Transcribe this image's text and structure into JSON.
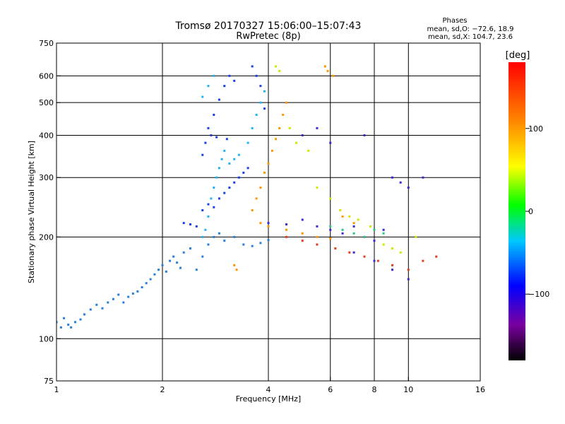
{
  "chart_data": {
    "type": "scatter",
    "title": "Tromsø 20170327 15:06:00–15:07:43",
    "subtitle": "RwPretec (8p)",
    "xlabel": "Frequency [MHz]",
    "ylabel": "Stationary phase Virtual Height [km]",
    "x_scale": "log2",
    "y_scale": "log",
    "xlim": [
      1,
      16
    ],
    "ylim": [
      75,
      750
    ],
    "x_ticks": [
      1,
      2,
      4,
      6,
      8,
      10,
      16
    ],
    "y_ticks": [
      75,
      100,
      200,
      300,
      400,
      500,
      600,
      750
    ],
    "grid": true,
    "phase_box": {
      "title": "Phases",
      "line_o": "mean, sd,O: −72.6, 18.9",
      "line_x": "mean, sd,X: 104.7, 23.6"
    },
    "colorbar": {
      "label": "[deg]",
      "ticks": [
        "100",
        "0",
        "−100"
      ],
      "tick_values": [
        100,
        0,
        -100
      ],
      "range": [
        -180,
        180
      ],
      "colors": [
        "#000000",
        "#7a00a0",
        "#0000ff",
        "#00c8ff",
        "#00ff00",
        "#ffff00",
        "#ff8800",
        "#ff0000"
      ]
    },
    "series": [
      {
        "color": "#2a7ddc",
        "points": [
          [
            1.0,
            112
          ],
          [
            1.03,
            108
          ],
          [
            1.05,
            115
          ],
          [
            1.08,
            110
          ],
          [
            1.1,
            108
          ],
          [
            1.13,
            112
          ],
          [
            1.17,
            114
          ],
          [
            1.2,
            118
          ],
          [
            1.25,
            122
          ],
          [
            1.3,
            126
          ],
          [
            1.35,
            123
          ],
          [
            1.4,
            128
          ],
          [
            1.45,
            131
          ],
          [
            1.5,
            135
          ],
          [
            1.55,
            128
          ],
          [
            1.6,
            133
          ],
          [
            1.65,
            136
          ],
          [
            1.7,
            138
          ],
          [
            1.75,
            142
          ],
          [
            1.8,
            146
          ],
          [
            1.85,
            150
          ],
          [
            1.9,
            155
          ],
          [
            1.95,
            160
          ],
          [
            2.0,
            165
          ],
          [
            2.05,
            158
          ],
          [
            2.1,
            170
          ],
          [
            2.15,
            175
          ],
          [
            2.2,
            168
          ],
          [
            2.25,
            162
          ],
          [
            2.3,
            180
          ],
          [
            2.4,
            185
          ],
          [
            2.5,
            160
          ],
          [
            2.6,
            175
          ],
          [
            2.7,
            190
          ],
          [
            2.8,
            200
          ],
          [
            2.9,
            205
          ],
          [
            3.0,
            195
          ],
          [
            3.2,
            200
          ],
          [
            3.4,
            190
          ],
          [
            3.6,
            188
          ],
          [
            3.8,
            192
          ],
          [
            4.0,
            196
          ]
        ]
      },
      {
        "color": "#1a3ee8",
        "points": [
          [
            2.3,
            220
          ],
          [
            2.4,
            218
          ],
          [
            2.5,
            215
          ],
          [
            2.6,
            240
          ],
          [
            2.7,
            250
          ],
          [
            2.8,
            245
          ],
          [
            2.9,
            260
          ],
          [
            3.0,
            270
          ],
          [
            3.1,
            280
          ],
          [
            3.2,
            290
          ],
          [
            3.3,
            300
          ],
          [
            3.4,
            310
          ],
          [
            3.5,
            320
          ],
          [
            2.7,
            420
          ],
          [
            2.8,
            460
          ],
          [
            2.9,
            510
          ],
          [
            3.0,
            560
          ],
          [
            3.1,
            600
          ],
          [
            3.2,
            580
          ],
          [
            2.6,
            350
          ],
          [
            2.65,
            380
          ],
          [
            2.75,
            400
          ],
          [
            2.85,
            395
          ],
          [
            3.05,
            390
          ],
          [
            3.6,
            640
          ],
          [
            3.7,
            600
          ],
          [
            3.8,
            560
          ],
          [
            3.9,
            480
          ]
        ]
      },
      {
        "color": "#1fb4f0",
        "points": [
          [
            2.6,
            200
          ],
          [
            2.65,
            210
          ],
          [
            2.7,
            230
          ],
          [
            2.75,
            260
          ],
          [
            2.8,
            280
          ],
          [
            2.85,
            300
          ],
          [
            2.9,
            320
          ],
          [
            2.95,
            340
          ],
          [
            3.0,
            360
          ],
          [
            3.5,
            380
          ],
          [
            3.6,
            420
          ],
          [
            3.7,
            460
          ],
          [
            3.8,
            500
          ],
          [
            3.9,
            540
          ],
          [
            2.6,
            520
          ],
          [
            2.7,
            560
          ],
          [
            2.8,
            600
          ],
          [
            3.1,
            330
          ],
          [
            3.2,
            340
          ],
          [
            3.3,
            350
          ]
        ]
      },
      {
        "color": "#ff9500",
        "points": [
          [
            3.6,
            240
          ],
          [
            3.7,
            260
          ],
          [
            3.8,
            280
          ],
          [
            3.9,
            310
          ],
          [
            4.0,
            330
          ],
          [
            4.1,
            360
          ],
          [
            4.2,
            390
          ],
          [
            4.3,
            420
          ],
          [
            4.4,
            460
          ],
          [
            4.5,
            500
          ],
          [
            3.8,
            220
          ],
          [
            4.0,
            215
          ],
          [
            4.5,
            210
          ],
          [
            5.0,
            205
          ],
          [
            5.5,
            200
          ],
          [
            6.0,
            198
          ],
          [
            5.8,
            640
          ],
          [
            5.9,
            620
          ],
          [
            6.1,
            600
          ],
          [
            3.2,
            165
          ],
          [
            3.25,
            160
          ],
          [
            6.5,
            230
          ],
          [
            7.0,
            220
          ]
        ]
      },
      {
        "color": "#d4e600",
        "points": [
          [
            4.2,
            640
          ],
          [
            4.3,
            620
          ],
          [
            4.6,
            420
          ],
          [
            4.8,
            380
          ],
          [
            5.2,
            360
          ],
          [
            5.5,
            280
          ],
          [
            6.0,
            260
          ],
          [
            6.4,
            240
          ],
          [
            6.8,
            230
          ],
          [
            7.2,
            225
          ],
          [
            7.8,
            215
          ],
          [
            8.5,
            190
          ],
          [
            9.0,
            185
          ],
          [
            9.5,
            180
          ],
          [
            10.5,
            200
          ]
        ]
      },
      {
        "color": "#3a2ad4",
        "points": [
          [
            4.0,
            220
          ],
          [
            4.5,
            218
          ],
          [
            5.0,
            225
          ],
          [
            5.5,
            215
          ],
          [
            6.0,
            210
          ],
          [
            6.5,
            205
          ],
          [
            7.0,
            215
          ],
          [
            7.5,
            200
          ],
          [
            8.0,
            195
          ],
          [
            8.5,
            210
          ],
          [
            9.0,
            300
          ],
          [
            9.5,
            290
          ],
          [
            10.0,
            280
          ],
          [
            11.0,
            300
          ],
          [
            7.5,
            400
          ],
          [
            5.5,
            420
          ],
          [
            5.0,
            400
          ],
          [
            6.0,
            380
          ],
          [
            7.0,
            180
          ],
          [
            8.0,
            170
          ],
          [
            9.0,
            160
          ],
          [
            10.0,
            150
          ]
        ]
      },
      {
        "color": "#e03c1e",
        "points": [
          [
            4.5,
            200
          ],
          [
            5.0,
            195
          ],
          [
            5.5,
            190
          ],
          [
            6.2,
            185
          ],
          [
            6.8,
            180
          ],
          [
            7.5,
            175
          ],
          [
            8.2,
            170
          ],
          [
            9.0,
            165
          ],
          [
            10.0,
            160
          ],
          [
            11.0,
            170
          ],
          [
            12.0,
            175
          ]
        ]
      },
      {
        "color": "#28c87a",
        "points": [
          [
            6.0,
            215
          ],
          [
            6.5,
            210
          ],
          [
            7.0,
            205
          ],
          [
            7.5,
            200
          ],
          [
            8.0,
            210
          ],
          [
            8.5,
            205
          ]
        ]
      }
    ]
  }
}
